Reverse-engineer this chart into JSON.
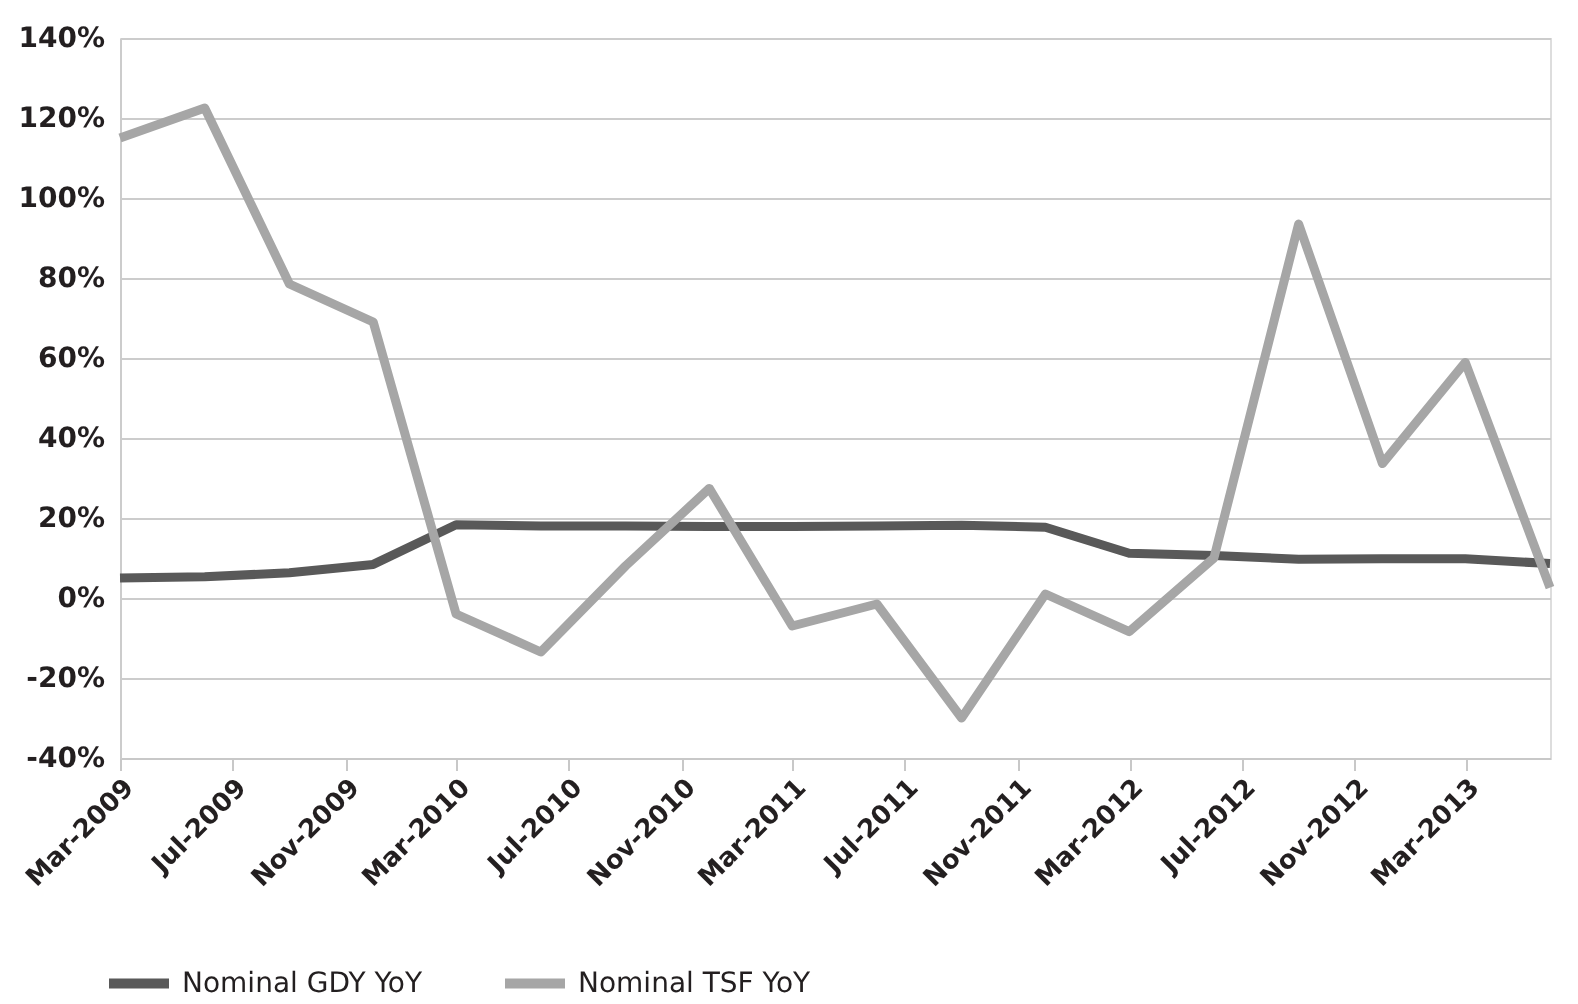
{
  "chart_data": {
    "type": "line",
    "x": [
      "2009-03",
      "2009-06",
      "2009-09",
      "2009-12",
      "2010-03",
      "2010-06",
      "2010-09",
      "2010-12",
      "2011-03",
      "2011-06",
      "2011-09",
      "2011-12",
      "2012-03",
      "2012-06",
      "2012-09",
      "2012-12",
      "2013-03",
      "2013-06"
    ],
    "series": [
      {
        "name": "Nominal GDY YoY",
        "color": "#595959",
        "values": [
          5,
          5.3,
          6.3,
          8.4,
          18.3,
          18,
          18,
          17.9,
          17.9,
          18,
          18.2,
          17.7,
          11.2,
          10.6,
          9.7,
          9.8,
          9.8,
          8.6
        ]
      },
      {
        "name": "Nominal TSF YoY",
        "color": "#a6a6a6",
        "values": [
          115,
          122.5,
          78.5,
          69,
          -4,
          -13.5,
          8,
          27.4,
          -7,
          -1.5,
          -30,
          1,
          -8.4,
          10,
          93.5,
          33.6,
          58.9,
          2.6
        ]
      }
    ],
    "xlim": [
      "2009-03",
      "2013-06"
    ],
    "xticks": [
      {
        "value": "2009-03",
        "label": "Mar-2009"
      },
      {
        "value": "2009-07",
        "label": "Jul-2009"
      },
      {
        "value": "2009-11",
        "label": "Nov-2009"
      },
      {
        "value": "2010-03",
        "label": "Mar-2010"
      },
      {
        "value": "2010-07",
        "label": "Jul-2010"
      },
      {
        "value": "2010-11",
        "label": "Nov-2010"
      },
      {
        "value": "2011-03",
        "label": "Mar-2011"
      },
      {
        "value": "2011-07",
        "label": "Jul-2011"
      },
      {
        "value": "2011-11",
        "label": "Nov-2011"
      },
      {
        "value": "2012-03",
        "label": "Mar-2012"
      },
      {
        "value": "2012-07",
        "label": "Jul-2012"
      },
      {
        "value": "2012-11",
        "label": "Nov-2012"
      },
      {
        "value": "2013-03",
        "label": "Mar-2013"
      }
    ],
    "ylim": [
      -40,
      140
    ],
    "yticks": [
      {
        "value": -40,
        "label": "-40%"
      },
      {
        "value": -20,
        "label": "-20%"
      },
      {
        "value": 0,
        "label": "0%"
      },
      {
        "value": 20,
        "label": "20%"
      },
      {
        "value": 40,
        "label": "40%"
      },
      {
        "value": 60,
        "label": "60%"
      },
      {
        "value": 80,
        "label": "80%"
      },
      {
        "value": 100,
        "label": "100%"
      },
      {
        "value": 120,
        "label": "120%"
      },
      {
        "value": 140,
        "label": "140%"
      }
    ],
    "grid": "y",
    "legend": "bottom left",
    "marker": "none",
    "line_style": "solid"
  }
}
